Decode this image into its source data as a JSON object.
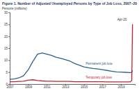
{
  "chart_data": {
    "type": "line",
    "title": "Figure 1. Number of Adjusted Unemployed Persons by Type of Job Loss, 2007–20",
    "y_label": "Persons (millions)",
    "x": [
      2007.0,
      2007.5,
      2008.0,
      2008.5,
      2009.0,
      2009.5,
      2010.0,
      2010.5,
      2011.0,
      2011.5,
      2012.0,
      2012.5,
      2013.0,
      2013.5,
      2014.0,
      2014.5,
      2015.0,
      2015.5,
      2016.0,
      2016.5,
      2017.0,
      2017.5,
      2018.0,
      2018.5,
      2019.0,
      2019.5,
      2020.0,
      2020.17,
      2020.25
    ],
    "series": [
      {
        "name": "Permanent job loss",
        "color": "#2b5f8e",
        "values": [
          2.0,
          2.1,
          2.6,
          3.5,
          6.0,
          9.5,
          12.5,
          13.0,
          12.5,
          12.0,
          11.2,
          10.8,
          10.2,
          9.6,
          8.6,
          7.9,
          7.2,
          6.8,
          6.5,
          6.3,
          6.0,
          5.7,
          5.4,
          5.1,
          5.0,
          4.9,
          4.8,
          4.9,
          5.7
        ]
      },
      {
        "name": "Temporary job loss",
        "color": "#c8202f",
        "values": [
          1.0,
          1.0,
          1.1,
          1.2,
          1.6,
          1.8,
          1.5,
          1.3,
          1.2,
          1.2,
          1.1,
          1.1,
          1.1,
          1.1,
          1.0,
          1.0,
          1.0,
          1.0,
          1.0,
          1.0,
          1.0,
          0.9,
          0.9,
          0.9,
          0.9,
          0.9,
          0.9,
          1.5,
          25.0
        ]
      }
    ],
    "annotations": [
      {
        "text": "Permanent job loss",
        "x": 2015.2,
        "y": 8.0,
        "series": 0
      },
      {
        "text": "Temporary job loss",
        "x": 2015.2,
        "y": 2.3,
        "series": 1
      },
      {
        "text": "Apr-20",
        "x": 2018.6,
        "y": 26.5
      }
    ],
    "xlim": [
      2007,
      2020.5
    ],
    "xticks": [
      2007,
      2009,
      2011,
      2013,
      2015,
      2017,
      2019
    ],
    "ylim": [
      0,
      30
    ],
    "yticks": [
      0,
      5,
      10,
      15,
      20,
      25,
      30
    ],
    "grid": false,
    "legend": "none"
  }
}
